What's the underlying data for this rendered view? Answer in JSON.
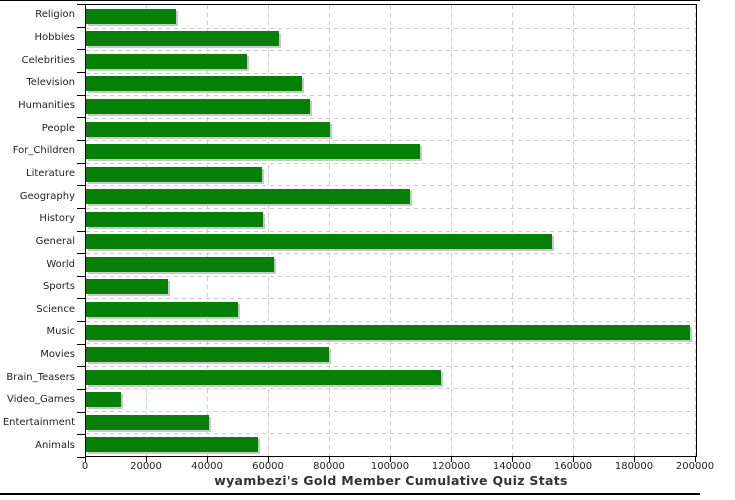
{
  "chart_data": {
    "type": "bar",
    "orientation": "horizontal",
    "title": "wyambezi's Gold Member Cumulative Quiz Stats",
    "categories": [
      "Religion",
      "Hobbies",
      "Celebrities",
      "Television",
      "Humanities",
      "People",
      "For_Children",
      "Literature",
      "Geography",
      "History",
      "General",
      "World",
      "Sports",
      "Science",
      "Music",
      "Movies",
      "Brain_Teasers",
      "Video_Games",
      "Entertainment",
      "Animals"
    ],
    "values": [
      29500,
      63300,
      52800,
      70800,
      73400,
      80000,
      109500,
      57700,
      106200,
      58000,
      152800,
      61600,
      26900,
      49800,
      198000,
      79700,
      116400,
      11500,
      40300,
      56400
    ],
    "xlabel": "",
    "ylabel": "",
    "xlim": [
      0,
      200000
    ],
    "x_ticks": [
      0,
      20000,
      40000,
      60000,
      80000,
      100000,
      120000,
      140000,
      160000,
      180000,
      200000
    ],
    "grid": "both-dashed",
    "legend": "none",
    "colors": {
      "bar": "#067f06",
      "bar_shadow": "#c9c9c9",
      "grid": "#cccccc",
      "axis": "#000000",
      "tick_text": "#222222",
      "title_text": "#333333",
      "background": "#ffffff"
    }
  }
}
